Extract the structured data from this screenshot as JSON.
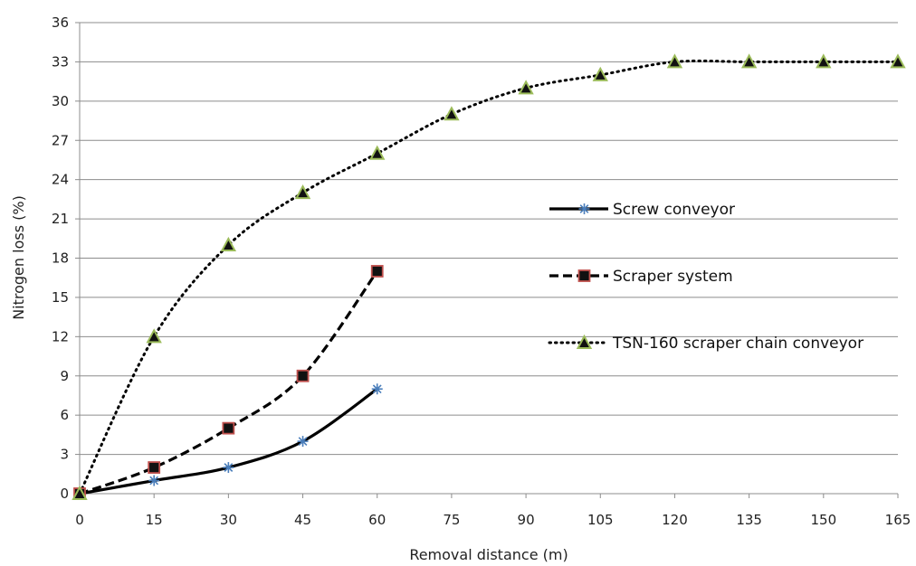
{
  "chart_data": {
    "type": "line",
    "title": "",
    "xlabel": "Removal distance (m)",
    "ylabel": "Nitrogen loss (%)",
    "x_ticks": [
      0,
      15,
      30,
      45,
      60,
      75,
      90,
      105,
      120,
      135,
      150,
      165
    ],
    "y_ticks": [
      0,
      3,
      6,
      9,
      12,
      15,
      18,
      21,
      24,
      27,
      30,
      33,
      36
    ],
    "xlim": [
      0,
      165
    ],
    "ylim": [
      0,
      36
    ],
    "grid": "horizontal",
    "legend_position": "right",
    "series": [
      {
        "name": "Screw conveyor",
        "x": [
          0,
          15,
          30,
          45,
          60
        ],
        "values": [
          0,
          1,
          2,
          4,
          8
        ],
        "line_style": "solid",
        "marker": "asterisk",
        "marker_color": "#4a7ebb"
      },
      {
        "name": "Scraper system",
        "x": [
          0,
          15,
          30,
          45,
          60
        ],
        "values": [
          0,
          2,
          5,
          9,
          17
        ],
        "line_style": "dashed",
        "marker": "square",
        "marker_color": "#c0504d"
      },
      {
        "name": "TSN-160 scraper chain conveyor",
        "x": [
          0,
          15,
          30,
          45,
          60,
          75,
          90,
          105,
          120,
          135,
          150,
          165
        ],
        "values": [
          0,
          12,
          19,
          23,
          26,
          29,
          31,
          32,
          33,
          33,
          33,
          33
        ],
        "line_style": "dotted",
        "marker": "triangle",
        "marker_color": "#9bbb59"
      }
    ]
  }
}
